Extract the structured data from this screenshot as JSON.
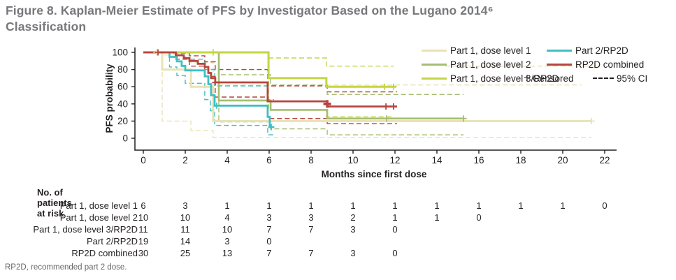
{
  "title": {
    "line1": "Figure 8. Kaplan-Meier Estimate of PFS by Investigator Based on the Lugano 2014⁶",
    "line2": "Classification",
    "color": "#77787b"
  },
  "figure": {
    "chart_data": {
      "type": "line",
      "subtype": "kaplan-meier-step",
      "xlabel": "Months since first dose",
      "ylabel": "PFS probability",
      "xlim": [
        0,
        22
      ],
      "ylim": [
        0,
        100
      ],
      "xticks": [
        0,
        2,
        4,
        6,
        8,
        10,
        12,
        14,
        16,
        18,
        20,
        22
      ],
      "yticks": [
        0,
        20,
        40,
        60,
        80,
        100
      ],
      "grid": false,
      "legend_position": "top-right-inside",
      "axis_color": "#231f20",
      "series": [
        {
          "name": "Part 1, dose level 1",
          "color": "#e8e2b6",
          "stroke_width": 3,
          "points": [
            [
              0,
              100
            ],
            [
              0.9,
              100
            ],
            [
              0.9,
              80
            ],
            [
              2.27,
              80
            ],
            [
              2.27,
              60
            ],
            [
              3.33,
              60
            ],
            [
              3.33,
              20
            ],
            [
              21.37,
              20
            ]
          ],
          "censored": [
            [
              0.63,
              100
            ],
            [
              21.37,
              20
            ]
          ],
          "ci_upper": [
            [
              0,
              100
            ],
            [
              0.9,
              100
            ],
            [
              0.9,
              97
            ],
            [
              2.27,
              97
            ],
            [
              2.27,
              88
            ],
            [
              3.33,
              88
            ],
            [
              3.33,
              62
            ],
            [
              20.9,
              62
            ]
          ],
          "ci_lower": [
            [
              0,
              100
            ],
            [
              0.9,
              100
            ],
            [
              0.9,
              20
            ],
            [
              2.27,
              20
            ],
            [
              2.27,
              9
            ],
            [
              3.33,
              9
            ],
            [
              3.33,
              1
            ],
            [
              21.37,
              1
            ]
          ]
        },
        {
          "name": "Part 1, dose level 2",
          "color": "#a6bd72",
          "stroke_width": 2.6,
          "points": [
            [
              0,
              100
            ],
            [
              3.6,
              100
            ],
            [
              3.6,
              44
            ],
            [
              6.07,
              44
            ],
            [
              6.07,
              33
            ],
            [
              8.77,
              33
            ],
            [
              8.77,
              23
            ],
            [
              15.27,
              23
            ]
          ],
          "censored": [
            [
              11.6,
              23
            ],
            [
              15.27,
              23
            ]
          ],
          "ci_upper": [
            [
              0,
              100
            ],
            [
              3.6,
              100
            ],
            [
              3.6,
              74
            ],
            [
              6.07,
              74
            ],
            [
              6.07,
              62
            ],
            [
              8.77,
              62
            ],
            [
              8.77,
              51
            ],
            [
              15.27,
              51
            ]
          ],
          "ci_lower": [
            [
              0,
              100
            ],
            [
              3.6,
              100
            ],
            [
              3.6,
              19
            ],
            [
              6.07,
              19
            ],
            [
              6.07,
              11
            ],
            [
              8.77,
              11
            ],
            [
              8.77,
              4
            ],
            [
              15.27,
              4
            ]
          ]
        },
        {
          "name": "Part 1, dose level 3/RP2D",
          "color": "#c3d545",
          "stroke_width": 3,
          "points": [
            [
              0,
              100
            ],
            [
              5.97,
              100
            ],
            [
              5.97,
              70
            ],
            [
              8.73,
              70
            ],
            [
              8.73,
              60
            ],
            [
              12.06,
              60
            ]
          ],
          "censored": [
            [
              3.33,
              100
            ],
            [
              11.5,
              60
            ],
            [
              11.93,
              60
            ]
          ],
          "ci_upper": [
            [
              0,
              100
            ],
            [
              5.97,
              100
            ],
            [
              5.97,
              93.5
            ],
            [
              8.73,
              93.5
            ],
            [
              8.73,
              84
            ],
            [
              11.93,
              84
            ]
          ],
          "ci_lower": [
            [
              0,
              100
            ],
            [
              5.97,
              100
            ],
            [
              5.97,
              33
            ],
            [
              8.73,
              33
            ],
            [
              8.73,
              25
            ],
            [
              11.93,
              25
            ]
          ]
        },
        {
          "name": "Part 2/RP2D",
          "color": "#3fbfc4",
          "stroke_width": 2.8,
          "points": [
            [
              0,
              100
            ],
            [
              1.25,
              100
            ],
            [
              1.25,
              94.7
            ],
            [
              1.6,
              94.7
            ],
            [
              1.6,
              89.5
            ],
            [
              1.83,
              89.5
            ],
            [
              1.83,
              84.2
            ],
            [
              2.0,
              84.2
            ],
            [
              2.0,
              79
            ],
            [
              2.93,
              79
            ],
            [
              2.93,
              72
            ],
            [
              3.1,
              72
            ],
            [
              3.1,
              63
            ],
            [
              3.23,
              63
            ],
            [
              3.23,
              50
            ],
            [
              3.4,
              50
            ],
            [
              3.4,
              38
            ],
            [
              5.93,
              38
            ],
            [
              5.93,
              25
            ],
            [
              6.03,
              25
            ],
            [
              6.03,
              13
            ],
            [
              6.23,
              13
            ]
          ],
          "censored": [
            [
              3.5,
              38
            ],
            [
              6.1,
              13
            ]
          ],
          "ci_upper": [
            [
              0,
              100
            ],
            [
              1.25,
              100
            ],
            [
              1.25,
              99
            ],
            [
              1.83,
              99
            ],
            [
              1.83,
              96
            ],
            [
              2.0,
              96
            ],
            [
              2.0,
              92
            ],
            [
              2.93,
              92
            ],
            [
              2.93,
              80
            ],
            [
              3.4,
              80
            ],
            [
              3.4,
              61
            ],
            [
              5.93,
              61
            ],
            [
              5.93,
              45
            ],
            [
              6.23,
              45
            ]
          ],
          "ci_lower": [
            [
              0,
              100
            ],
            [
              1.25,
              100
            ],
            [
              1.25,
              83
            ],
            [
              1.6,
              83
            ],
            [
              1.6,
              73
            ],
            [
              2.0,
              73
            ],
            [
              2.0,
              64
            ],
            [
              2.93,
              64
            ],
            [
              2.93,
              45
            ],
            [
              3.2,
              45
            ],
            [
              3.2,
              32
            ],
            [
              3.4,
              32
            ],
            [
              3.4,
              15
            ],
            [
              5.93,
              15
            ],
            [
              5.93,
              4
            ],
            [
              6.23,
              4
            ]
          ]
        },
        {
          "name": "RP2D combined",
          "color": "#b5453e",
          "stroke_width": 2.8,
          "points": [
            [
              0,
              100
            ],
            [
              1.55,
              100
            ],
            [
              1.55,
              96.7
            ],
            [
              1.93,
              96.7
            ],
            [
              1.93,
              93.3
            ],
            [
              2.2,
              93.3
            ],
            [
              2.2,
              90
            ],
            [
              2.6,
              90
            ],
            [
              2.6,
              86.7
            ],
            [
              2.93,
              86.7
            ],
            [
              2.93,
              83
            ],
            [
              3.1,
              83
            ],
            [
              3.1,
              76
            ],
            [
              3.23,
              76
            ],
            [
              3.23,
              70
            ],
            [
              3.43,
              70
            ],
            [
              3.43,
              65
            ],
            [
              5.93,
              65
            ],
            [
              5.93,
              43
            ],
            [
              8.77,
              43
            ],
            [
              8.77,
              37
            ],
            [
              12.1,
              37
            ]
          ],
          "censored": [
            [
              0.7,
              100
            ],
            [
              3.43,
              65
            ],
            [
              8.77,
              40,
              "thick"
            ],
            [
              11.57,
              37
            ],
            [
              11.93,
              37
            ]
          ],
          "ci_upper": [
            [
              0,
              100
            ],
            [
              1.55,
              100
            ],
            [
              1.55,
              99
            ],
            [
              2.2,
              99
            ],
            [
              2.2,
              96
            ],
            [
              2.93,
              96
            ],
            [
              2.93,
              89
            ],
            [
              3.43,
              89
            ],
            [
              3.43,
              80
            ],
            [
              5.93,
              80
            ],
            [
              5.93,
              61
            ],
            [
              8.77,
              61
            ],
            [
              8.77,
              54
            ],
            [
              12.1,
              54
            ]
          ],
          "ci_lower": [
            [
              0,
              100
            ],
            [
              1.55,
              100
            ],
            [
              1.55,
              92
            ],
            [
              2.2,
              92
            ],
            [
              2.2,
              84
            ],
            [
              2.93,
              84
            ],
            [
              2.93,
              72
            ],
            [
              3.43,
              72
            ],
            [
              3.43,
              48
            ],
            [
              5.93,
              48
            ],
            [
              5.93,
              23
            ],
            [
              8.77,
              23
            ],
            [
              8.77,
              17
            ],
            [
              12.1,
              17
            ]
          ]
        }
      ],
      "extra_ci_segments": [
        {
          "color": "#e8e2b6",
          "points": [
            [
              14.4,
              84
            ],
            [
              21.7,
              84
            ]
          ]
        }
      ]
    },
    "legend": {
      "items": [
        {
          "label": "Part 1, dose level 1",
          "color": "#e8e2b6",
          "col": 1,
          "row": 1
        },
        {
          "label": "Part 1, dose level 2",
          "color": "#a6bd72",
          "col": 1,
          "row": 2
        },
        {
          "label": "Part 1, dose level 3/RP2D",
          "color": "#c3d545",
          "col": 1,
          "row": 3
        },
        {
          "label": "Part 2/RP2D",
          "color": "#3fbfc4",
          "col": 2,
          "row": 1
        },
        {
          "label": "RP2D combined",
          "color": "#b5453e",
          "col": 2,
          "row": 2
        }
      ],
      "censored_symbol": "+",
      "censored_label": "Censored",
      "ci_label": "95% CI"
    }
  },
  "risk_table": {
    "header": "No. of patients at risk",
    "months": [
      0,
      2,
      4,
      6,
      8,
      10,
      12,
      14,
      16,
      18,
      20,
      22
    ],
    "rows": [
      {
        "label": "Part 1, dose level 1",
        "values": [
          6,
          3,
          1,
          1,
          1,
          1,
          1,
          1,
          1,
          1,
          1,
          0
        ]
      },
      {
        "label": "Part 1, dose level 2",
        "values": [
          10,
          10,
          4,
          3,
          3,
          2,
          1,
          1,
          0
        ]
      },
      {
        "label": "Part 1, dose level 3/RP2D",
        "values": [
          11,
          11,
          10,
          7,
          7,
          3,
          0
        ]
      },
      {
        "label": "Part 2/RP2D",
        "values": [
          19,
          14,
          3,
          0
        ]
      },
      {
        "label": "RP2D combined",
        "values": [
          30,
          25,
          13,
          7,
          7,
          3,
          0
        ]
      }
    ]
  },
  "footnote": "RP2D, recommended part 2 dose."
}
